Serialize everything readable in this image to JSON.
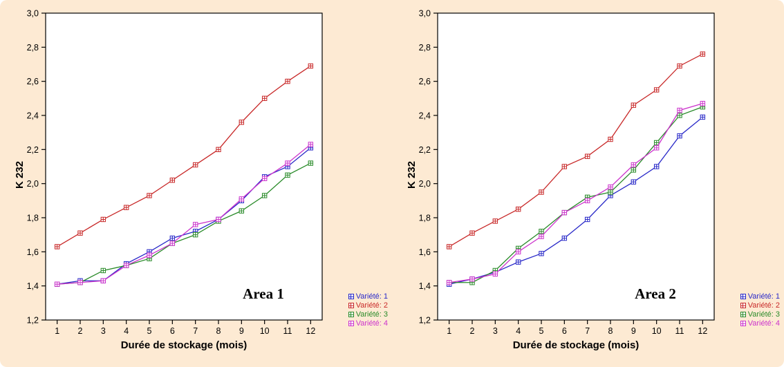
{
  "page": {
    "background": "#fdead3"
  },
  "chart_data": [
    {
      "type": "line",
      "title": "Area 1",
      "xlabel": "Durée de stockage (mois)",
      "ylabel": "K 232",
      "x": [
        1,
        2,
        3,
        4,
        5,
        6,
        7,
        8,
        9,
        10,
        11,
        12
      ],
      "ylim": [
        1.2,
        3.0
      ],
      "ytick_step": 0.2,
      "ytick_labels": [
        "1,2",
        "1,4",
        "1,6",
        "1,8",
        "2,0",
        "2,2",
        "2,4",
        "2,6",
        "2,8",
        "3,0"
      ],
      "grid": false,
      "legend_position": "outside-bottom-right",
      "series": [
        {
          "name": "Variété: 1",
          "color": "#2828c8",
          "marker": "boxed-plus",
          "values": [
            1.41,
            1.43,
            1.43,
            1.53,
            1.6,
            1.68,
            1.72,
            1.79,
            1.9,
            2.04,
            2.1,
            2.21
          ]
        },
        {
          "name": "Variété: 2",
          "color": "#c82828",
          "marker": "boxed-plus",
          "values": [
            1.63,
            1.71,
            1.79,
            1.86,
            1.93,
            2.02,
            2.11,
            2.2,
            2.36,
            2.5,
            2.6,
            2.69
          ]
        },
        {
          "name": "Variété: 3",
          "color": "#288a28",
          "marker": "boxed-plus",
          "values": [
            1.41,
            1.42,
            1.49,
            1.52,
            1.56,
            1.65,
            1.7,
            1.78,
            1.84,
            1.93,
            2.05,
            2.12
          ]
        },
        {
          "name": "Variété: 4",
          "color": "#cc33cc",
          "marker": "boxed-plus",
          "values": [
            1.41,
            1.42,
            1.43,
            1.52,
            1.58,
            1.65,
            1.76,
            1.79,
            1.91,
            2.03,
            2.12,
            2.23
          ]
        }
      ]
    },
    {
      "type": "line",
      "title": "Area 2",
      "xlabel": "Durée de stockage (mois)",
      "ylabel": "K 232",
      "x": [
        1,
        2,
        3,
        4,
        5,
        6,
        7,
        8,
        9,
        10,
        11,
        12
      ],
      "ylim": [
        1.2,
        3.0
      ],
      "ytick_step": 0.2,
      "ytick_labels": [
        "1,2",
        "1,4",
        "1,6",
        "1,8",
        "2,0",
        "2,2",
        "2,4",
        "2,6",
        "2,8",
        "3,0"
      ],
      "grid": false,
      "legend_position": "outside-bottom-right",
      "series": [
        {
          "name": "Variété: 1",
          "color": "#2828c8",
          "marker": "boxed-plus",
          "values": [
            1.41,
            1.44,
            1.48,
            1.54,
            1.59,
            1.68,
            1.79,
            1.93,
            2.01,
            2.1,
            2.28,
            2.39
          ]
        },
        {
          "name": "Variété: 2",
          "color": "#c82828",
          "marker": "boxed-plus",
          "values": [
            1.63,
            1.71,
            1.78,
            1.85,
            1.95,
            2.1,
            2.16,
            2.26,
            2.46,
            2.55,
            2.69,
            2.76
          ]
        },
        {
          "name": "Variété: 3",
          "color": "#288a28",
          "marker": "boxed-plus",
          "values": [
            1.42,
            1.42,
            1.49,
            1.62,
            1.72,
            1.83,
            1.92,
            1.95,
            2.08,
            2.24,
            2.4,
            2.45
          ]
        },
        {
          "name": "Variété: 4",
          "color": "#cc33cc",
          "marker": "boxed-plus",
          "values": [
            1.42,
            1.44,
            1.47,
            1.6,
            1.69,
            1.83,
            1.9,
            1.98,
            2.11,
            2.21,
            2.43,
            2.47
          ]
        }
      ]
    }
  ]
}
